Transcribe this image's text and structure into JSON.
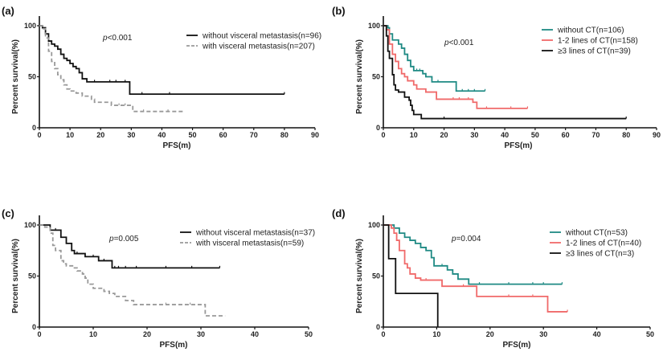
{
  "chart_data": [
    {
      "type": "line",
      "panel_label": "(a)",
      "xlabel": "PFS(m)",
      "ylabel": "Percent survival(%)",
      "xlim": [
        0,
        90
      ],
      "ylim": [
        0,
        100
      ],
      "xticks": [
        0,
        10,
        20,
        30,
        40,
        50,
        60,
        70,
        80,
        90
      ],
      "yticks": [
        0,
        50,
        100
      ],
      "annotation": {
        "italic": "p",
        "rest": "<0.001"
      },
      "legend_placement": "top-right",
      "series": [
        {
          "name": "without visceral metastasis(n=96)",
          "color": "#111111",
          "dashed": false,
          "steps": [
            [
              0,
              100
            ],
            [
              1,
              98
            ],
            [
              2,
              92
            ],
            [
              3,
              85
            ],
            [
              4,
              82
            ],
            [
              5,
              80
            ],
            [
              6,
              77
            ],
            [
              7,
              72
            ],
            [
              8,
              68
            ],
            [
              9,
              66
            ],
            [
              10,
              63
            ],
            [
              11,
              60
            ],
            [
              12,
              58
            ],
            [
              13,
              54
            ],
            [
              14,
              48
            ],
            [
              15.5,
              45
            ],
            [
              29.5,
              33
            ]
          ],
          "end": 80,
          "censored": [
            18,
            23,
            25,
            28,
            33.5,
            42.5,
            80
          ]
        },
        {
          "name": "with visceral metastasis(n=207)",
          "color": "#999999",
          "dashed": true,
          "steps": [
            [
              0,
              100
            ],
            [
              1,
              97
            ],
            [
              2,
              88
            ],
            [
              3,
              75
            ],
            [
              4,
              65
            ],
            [
              5,
              58
            ],
            [
              6,
              52
            ],
            [
              7,
              47
            ],
            [
              8,
              42
            ],
            [
              9,
              38
            ],
            [
              10,
              36
            ],
            [
              12,
              34
            ],
            [
              14,
              31
            ],
            [
              17,
              28
            ],
            [
              18,
              25
            ],
            [
              23.5,
              22
            ],
            [
              30.5,
              16
            ]
          ],
          "end": 47.5,
          "censored": [
            26,
            28,
            34,
            42
          ]
        }
      ]
    },
    {
      "type": "line",
      "panel_label": "(b)",
      "xlabel": "PFS(m)",
      "ylabel": "Percent survival(%)",
      "xlim": [
        0,
        90
      ],
      "ylim": [
        0,
        100
      ],
      "xticks": [
        0,
        10,
        20,
        30,
        40,
        50,
        60,
        70,
        80,
        90
      ],
      "yticks": [
        0,
        50,
        100
      ],
      "annotation": {
        "italic": "p",
        "rest": "<0.001"
      },
      "legend_placement": "top-right",
      "series": [
        {
          "name": "without CT(n=106)",
          "color": "#1f8a84",
          "dashed": false,
          "steps": [
            [
              0,
              100
            ],
            [
              1.5,
              98
            ],
            [
              2,
              92
            ],
            [
              3,
              86
            ],
            [
              5,
              82
            ],
            [
              6,
              78
            ],
            [
              7,
              72
            ],
            [
              8,
              66
            ],
            [
              9,
              60
            ],
            [
              10,
              56
            ],
            [
              13,
              53
            ],
            [
              14,
              50
            ],
            [
              16,
              45
            ],
            [
              24,
              36
            ]
          ],
          "end": 33.5,
          "censored": [
            11,
            12,
            18,
            26,
            28,
            30,
            33.5
          ]
        },
        {
          "name": "1-2 lines of CT(n=158)",
          "color": "#f06a6a",
          "dashed": false,
          "steps": [
            [
              0,
              100
            ],
            [
              1,
              96
            ],
            [
              2,
              82
            ],
            [
              3,
              72
            ],
            [
              4,
              65
            ],
            [
              5,
              58
            ],
            [
              6,
              53
            ],
            [
              7,
              50
            ],
            [
              8,
              46
            ],
            [
              10,
              42
            ],
            [
              11,
              38
            ],
            [
              14,
              35
            ],
            [
              17.5,
              28
            ],
            [
              29.5,
              25
            ],
            [
              30.8,
              19
            ]
          ],
          "end": 47.5,
          "censored": [
            23,
            25,
            28,
            34,
            42,
            47.5
          ]
        },
        {
          "name": "≥3 lines of CT(n=39)",
          "color": "#111111",
          "dashed": false,
          "steps": [
            [
              0,
              100
            ],
            [
              1,
              90
            ],
            [
              1.5,
              75
            ],
            [
              2,
              68
            ],
            [
              3,
              52
            ],
            [
              3.5,
              42
            ],
            [
              4,
              37
            ],
            [
              5,
              35
            ],
            [
              7,
              30
            ],
            [
              8.5,
              27
            ],
            [
              9,
              22
            ],
            [
              9.5,
              17
            ],
            [
              10,
              13
            ],
            [
              12.5,
              9
            ]
          ],
          "end": 80,
          "censored": [
            20,
            80
          ]
        }
      ]
    },
    {
      "type": "line",
      "panel_label": "(c)",
      "xlabel": "PFS(m)",
      "ylabel": "Percent survival(%)",
      "xlim": [
        0,
        50
      ],
      "ylim": [
        0,
        100
      ],
      "xticks": [
        0,
        10,
        20,
        30,
        40,
        50
      ],
      "yticks": [
        0,
        50,
        100
      ],
      "annotation": {
        "italic": "p",
        "rest": "=0.005"
      },
      "legend_placement": "top-right",
      "series": [
        {
          "name": "without visceral metastasis(n=37)",
          "color": "#111111",
          "dashed": false,
          "steps": [
            [
              0,
              100
            ],
            [
              2,
              95
            ],
            [
              4,
              88
            ],
            [
              5,
              82
            ],
            [
              6,
              75
            ],
            [
              6.5,
              72
            ],
            [
              8.5,
              69
            ],
            [
              11,
              65
            ],
            [
              13.5,
              58
            ]
          ],
          "end": 33.5,
          "censored": [
            3,
            7,
            10,
            12,
            14,
            14.7,
            16,
            18,
            23.5,
            28.3,
            33.5
          ]
        },
        {
          "name": "with visceral metastasis(n=59)",
          "color": "#999999",
          "dashed": true,
          "steps": [
            [
              0,
              100
            ],
            [
              1,
              98
            ],
            [
              2,
              92
            ],
            [
              2.5,
              80
            ],
            [
              3,
              75
            ],
            [
              4,
              65
            ],
            [
              4.5,
              62
            ],
            [
              5,
              60
            ],
            [
              6.5,
              58
            ],
            [
              7,
              55
            ],
            [
              8,
              52
            ],
            [
              8.5,
              48
            ],
            [
              9,
              42
            ],
            [
              10,
              38
            ],
            [
              12,
              35
            ],
            [
              13,
              33
            ],
            [
              14,
              30
            ],
            [
              16,
              26
            ],
            [
              17.5,
              22
            ],
            [
              30.8,
              11
            ]
          ],
          "end": 34.5,
          "censored": [
            23.5,
            28
          ]
        }
      ]
    },
    {
      "type": "line",
      "panel_label": "(d)",
      "xlabel": "PFS(m)",
      "ylabel": "Percent survival(%)",
      "xlim": [
        0,
        50
      ],
      "ylim": [
        0,
        100
      ],
      "xticks": [
        0,
        10,
        20,
        30,
        40,
        50
      ],
      "yticks": [
        0,
        50,
        100
      ],
      "annotation": {
        "italic": "p",
        "rest": "=0.004"
      },
      "legend_placement": "top-right",
      "series": [
        {
          "name": "without CT(n=53)",
          "color": "#1f8a84",
          "dashed": false,
          "steps": [
            [
              0,
              100
            ],
            [
              2,
              97
            ],
            [
              3,
              92
            ],
            [
              4,
              88
            ],
            [
              5,
              85
            ],
            [
              6,
              82
            ],
            [
              7,
              78
            ],
            [
              8,
              75
            ],
            [
              9,
              68
            ],
            [
              9.5,
              60
            ],
            [
              12,
              56
            ],
            [
              13,
              52
            ],
            [
              14,
              47
            ],
            [
              16,
              42
            ]
          ],
          "end": 33.5,
          "censored": [
            11,
            12,
            18,
            23.5,
            28,
            30,
            33.5
          ]
        },
        {
          "name": "1-2 lines of CT(n=40)",
          "color": "#f06a6a",
          "dashed": false,
          "steps": [
            [
              0,
              100
            ],
            [
              1.5,
              97
            ],
            [
              2,
              92
            ],
            [
              2.5,
              85
            ],
            [
              3,
              75
            ],
            [
              4,
              62
            ],
            [
              4.5,
              58
            ],
            [
              5,
              52
            ],
            [
              6,
              48
            ],
            [
              7,
              46
            ],
            [
              11,
              40
            ],
            [
              17.5,
              30
            ],
            [
              30.8,
              15
            ]
          ],
          "end": 34.5,
          "censored": [
            8,
            15,
            23.5,
            28,
            34.5
          ]
        },
        {
          "name": "≥3 lines of CT(n=3)",
          "color": "#111111",
          "dashed": false,
          "steps": [
            [
              0,
              100
            ],
            [
              1,
              67
            ],
            [
              2.3,
              33
            ],
            [
              10.2,
              0
            ]
          ],
          "end": 10.2,
          "censored": []
        }
      ]
    }
  ]
}
